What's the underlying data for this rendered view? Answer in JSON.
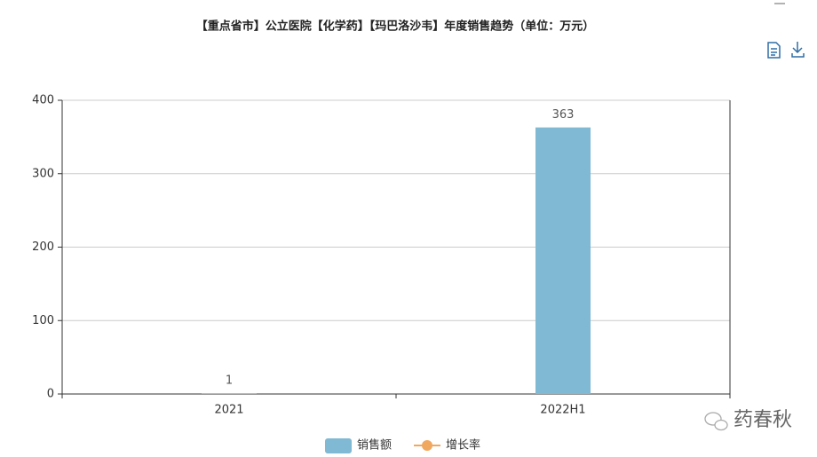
{
  "chart_data": {
    "type": "bar",
    "title": "【重点省市】公立医院【化学药】【玛巴洛沙韦】年度销售趋势（单位：万元）",
    "categories": [
      "2021",
      "2022H1"
    ],
    "series": [
      {
        "name": "销售额",
        "type": "bar",
        "color": "#7fb9d3",
        "values": [
          1,
          363
        ]
      },
      {
        "name": "增长率",
        "type": "line",
        "color": "#f0a860",
        "axis": "y2",
        "values": [
          null,
          null
        ]
      }
    ],
    "ylim": [
      0,
      400
    ],
    "yticks": [
      0,
      100,
      200,
      300,
      400
    ],
    "grid": true,
    "legend": "bottom",
    "watermark": "药春秋"
  }
}
